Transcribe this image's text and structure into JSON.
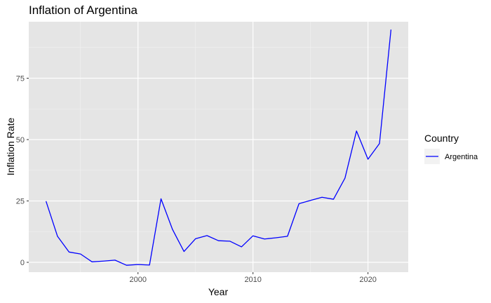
{
  "chart_data": {
    "type": "line",
    "title": "Inflation of Argentina",
    "xlabel": "Year",
    "ylabel": "Inflation Rate",
    "xlim": [
      1990.5,
      2023.5
    ],
    "ylim": [
      -4,
      98
    ],
    "x_ticks": [
      2000,
      2010,
      2020
    ],
    "y_ticks": [
      0,
      25,
      50,
      75
    ],
    "grid": true,
    "legend": {
      "title": "Country",
      "position": "right"
    },
    "series": [
      {
        "name": "Argentina",
        "color": "#0000ff",
        "x": [
          1992,
          1993,
          1994,
          1995,
          1996,
          1997,
          1998,
          1999,
          2000,
          2001,
          2002,
          2003,
          2004,
          2005,
          2006,
          2007,
          2008,
          2009,
          2010,
          2011,
          2012,
          2013,
          2014,
          2015,
          2016,
          2017,
          2018,
          2019,
          2020,
          2021,
          2022
        ],
        "y": [
          24.9,
          10.6,
          4.2,
          3.4,
          0.2,
          0.5,
          0.9,
          -1.2,
          -0.9,
          -1.1,
          25.9,
          13.4,
          4.4,
          9.6,
          10.9,
          8.8,
          8.6,
          6.3,
          10.8,
          9.5,
          10.0,
          10.6,
          23.9,
          25.2,
          26.5,
          25.7,
          34.3,
          53.5,
          42.0,
          48.4,
          94.8
        ]
      }
    ]
  }
}
